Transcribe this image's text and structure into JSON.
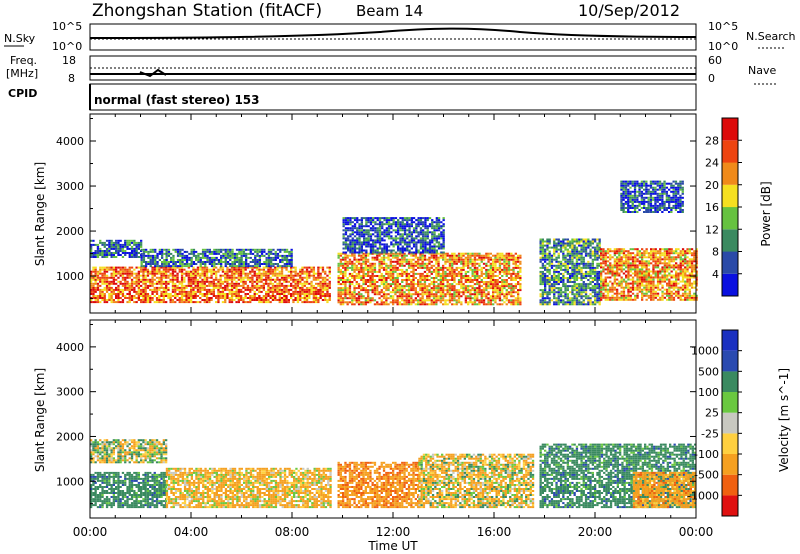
{
  "header": {
    "station": "Zhongshan Station (fitACF)",
    "beam": "Beam 14",
    "date": "10/Sep/2012"
  },
  "top_panel": {
    "left_label": "N.Sky",
    "left_ticks": [
      "10^5",
      "10^0"
    ],
    "right_ticks": [
      "10^5",
      "10^0"
    ],
    "right_label": "N.Search"
  },
  "freq_panel": {
    "left_label_1": "Freq.",
    "left_label_2": "[MHz]",
    "left_ticks": [
      "18",
      "8"
    ],
    "right_ticks": [
      "60",
      "0"
    ],
    "right_label": "Nave"
  },
  "cpid_panel": {
    "left_label": "CPID",
    "text": "normal (fast stereo) 153"
  },
  "axes": {
    "ylabel": "Slant Range [km]",
    "yticks": [
      "4000",
      "3000",
      "2000",
      "1000"
    ],
    "xticks": [
      "00:00",
      "04:00",
      "08:00",
      "12:00",
      "16:00",
      "20:00",
      "00:00"
    ],
    "xlabel": "Time UT"
  },
  "chart_data": [
    {
      "type": "heatmap",
      "quantity": "power",
      "colorbar_label": "Power [dB]",
      "colorbar_ticks": [
        "28",
        "24",
        "20",
        "16",
        "12",
        "8",
        "4"
      ],
      "x_range_hours": [
        0,
        24
      ],
      "y_range_km": [
        180,
        4600
      ],
      "color_bins": [
        {
          "max": 4,
          "color": "#0a10e0"
        },
        {
          "max": 8,
          "color": "#2a4aa8"
        },
        {
          "max": 12,
          "color": "#3a8a60"
        },
        {
          "max": 16,
          "color": "#66c240"
        },
        {
          "max": 20,
          "color": "#f5e020"
        },
        {
          "max": 24,
          "color": "#f08a1a"
        },
        {
          "max": 28,
          "color": "#ee4410"
        },
        {
          "max": 32,
          "color": "#dd0a0a"
        }
      ],
      "regions": [
        {
          "t0": 0.0,
          "t1": 9.5,
          "r0": 400,
          "r1": 1200,
          "level": 24
        },
        {
          "t0": 0.0,
          "t1": 2.0,
          "r0": 1400,
          "r1": 1800,
          "level": 6
        },
        {
          "t0": 2.0,
          "t1": 8.0,
          "r0": 1200,
          "r1": 1600,
          "level": 8
        },
        {
          "t0": 9.8,
          "t1": 17.0,
          "r0": 350,
          "r1": 1500,
          "level": 22
        },
        {
          "t0": 10.0,
          "t1": 14.0,
          "r0": 1500,
          "r1": 2300,
          "level": 6
        },
        {
          "t0": 17.8,
          "t1": 20.2,
          "r0": 350,
          "r1": 1800,
          "level": 10
        },
        {
          "t0": 20.2,
          "t1": 24.0,
          "r0": 450,
          "r1": 1600,
          "level": 22
        },
        {
          "t0": 21.0,
          "t1": 23.5,
          "r0": 2400,
          "r1": 3100,
          "level": 6
        }
      ]
    },
    {
      "type": "heatmap",
      "quantity": "velocity",
      "colorbar_label": "Velocity [m s^-1]",
      "colorbar_ticks": [
        "1000",
        "500",
        "100",
        "25",
        "-25",
        "-100",
        "-500",
        "-1000"
      ],
      "x_range_hours": [
        0,
        24
      ],
      "y_range_km": [
        180,
        4600
      ],
      "color_bins": [
        {
          "max": -1000,
          "color": "#e01010"
        },
        {
          "max": -500,
          "color": "#f06010"
        },
        {
          "max": -100,
          "color": "#f5a020"
        },
        {
          "max": -25,
          "color": "#ffd040"
        },
        {
          "max": 25,
          "color": "#c8c8c0"
        },
        {
          "max": 100,
          "color": "#6ac840"
        },
        {
          "max": 500,
          "color": "#3a8a60"
        },
        {
          "max": 1000,
          "color": "#2a4ab0"
        },
        {
          "max": 2000,
          "color": "#1a30c0"
        }
      ],
      "regions": [
        {
          "t0": 0.0,
          "t1": 3.0,
          "r0": 400,
          "r1": 1200,
          "level": 300
        },
        {
          "t0": 0.0,
          "t1": 3.0,
          "r0": 1400,
          "r1": 1900,
          "level": 0
        },
        {
          "t0": 3.0,
          "t1": 9.5,
          "r0": 400,
          "r1": 1300,
          "level": -150
        },
        {
          "t0": 9.8,
          "t1": 13.0,
          "r0": 400,
          "r1": 1400,
          "level": -400
        },
        {
          "t0": 13.0,
          "t1": 17.5,
          "r0": 400,
          "r1": 1600,
          "level": -80
        },
        {
          "t0": 17.8,
          "t1": 24.0,
          "r0": 400,
          "r1": 1800,
          "level": 300
        },
        {
          "t0": 21.5,
          "t1": 24.0,
          "r0": 400,
          "r1": 1200,
          "level": -300
        }
      ]
    }
  ]
}
